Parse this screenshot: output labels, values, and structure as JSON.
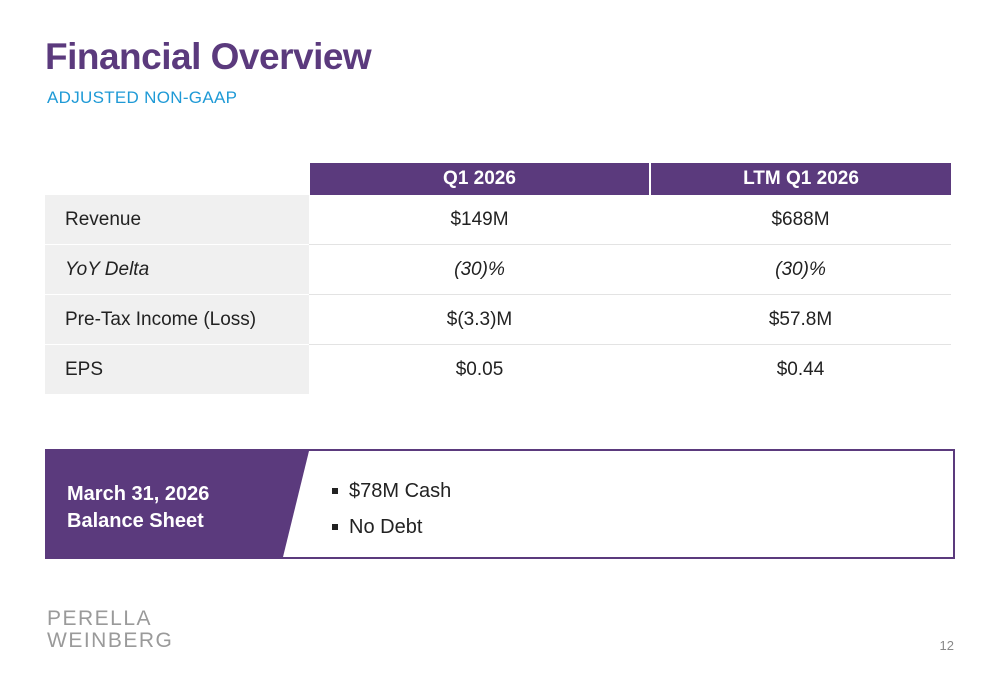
{
  "title": "Financial Overview",
  "subtitle": "ADJUSTED NON-GAAP",
  "table": {
    "headers": [
      "",
      "Q1 2026",
      "LTM Q1 2026"
    ],
    "rows": [
      {
        "label": "Revenue",
        "q1": "$149M",
        "ltm": "$688M",
        "italic": false
      },
      {
        "label": "YoY Delta",
        "q1": "(30)%",
        "ltm": "(30)%",
        "italic": true
      },
      {
        "label": "Pre-Tax Income (Loss)",
        "q1": "$(3.3)M",
        "ltm": "$57.8M",
        "italic": false
      },
      {
        "label": "EPS",
        "q1": "$0.05",
        "ltm": "$0.44",
        "italic": false
      }
    ]
  },
  "balance_sheet": {
    "heading_line1": "March 31, 2026",
    "heading_line2": "Balance Sheet",
    "items": [
      "$78M Cash",
      "No Debt"
    ]
  },
  "logo": {
    "line1": "PERELLA",
    "line2": "WEINBERG"
  },
  "page_number": "12",
  "colors": {
    "brand_purple": "#5b3a7d",
    "subtitle_blue": "#1f9ad6"
  }
}
